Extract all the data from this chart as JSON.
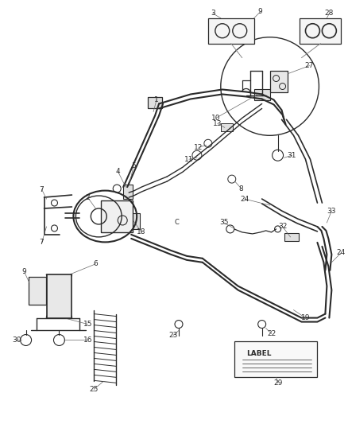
{
  "bg_color": "#ffffff",
  "line_color": "#2a2a2a",
  "text_color": "#2a2a2a",
  "fig_width": 4.39,
  "fig_height": 5.33,
  "dpi": 100
}
